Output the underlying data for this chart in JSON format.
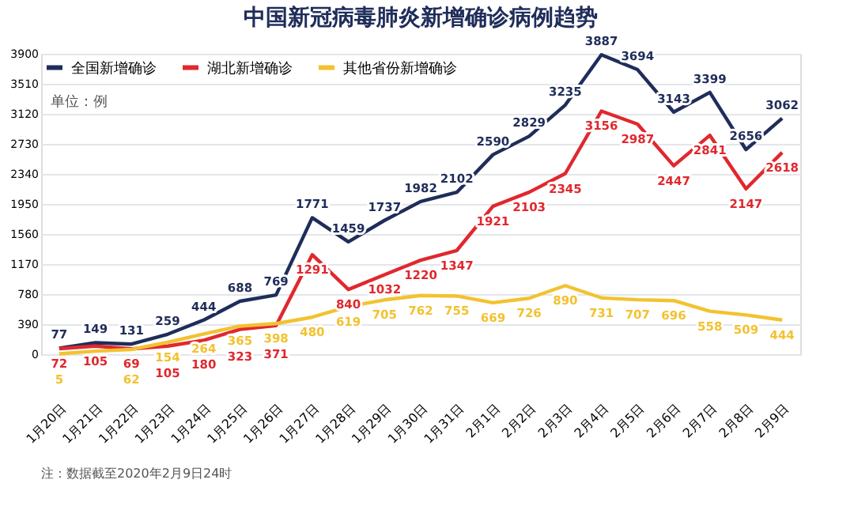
{
  "chart_data": {
    "type": "line",
    "title": "中国新冠病毒肺炎新增确诊病例趋势",
    "categories": [
      "1月20日",
      "1月21日",
      "1月22日",
      "1月23日",
      "1月24日",
      "1月25日",
      "1月26日",
      "1月27日",
      "1月28日",
      "1月29日",
      "1月30日",
      "1月31日",
      "2月1日",
      "2月2日",
      "2月3日",
      "2月4日",
      "2月5日",
      "2月6日",
      "2月7日",
      "2月8日",
      "2月9日"
    ],
    "series": [
      {
        "name": "全国新增确诊",
        "color": "#1f2d5a",
        "values": [
          77,
          149,
          131,
          259,
          444,
          688,
          769,
          1771,
          1459,
          1737,
          1982,
          2102,
          2590,
          2829,
          3235,
          3887,
          3694,
          3143,
          3399,
          2656,
          3062
        ]
      },
      {
        "name": "湖北新增确诊",
        "color": "#e0282e",
        "values": [
          72,
          105,
          69,
          105,
          180,
          323,
          371,
          1291,
          840,
          1032,
          1220,
          1347,
          1921,
          2103,
          2345,
          3156,
          2987,
          2447,
          2841,
          2147,
          2618
        ]
      },
      {
        "name": "其他省份新增确诊",
        "color": "#f2c230",
        "values": [
          5,
          40,
          62,
          154,
          264,
          365,
          398,
          480,
          619,
          705,
          762,
          755,
          669,
          726,
          890,
          731,
          707,
          696,
          558,
          509,
          444
        ],
        "value_labels": [
          "5",
          null,
          "62",
          "154",
          "264",
          "365",
          "398",
          "480",
          "619",
          "705",
          "762",
          "755",
          "669",
          "726",
          "890",
          "731",
          "707",
          "696",
          "558",
          "509",
          "444"
        ]
      }
    ],
    "ylim": [
      0,
      3900
    ],
    "yticks": [
      0,
      390,
      780,
      1170,
      1560,
      1950,
      2340,
      2730,
      3120,
      3510,
      3900
    ],
    "grid": "y",
    "legend": "top left",
    "data_labels": true,
    "annotations": [
      "单位：例",
      "注：数据截至2020年2月9日24时"
    ]
  }
}
